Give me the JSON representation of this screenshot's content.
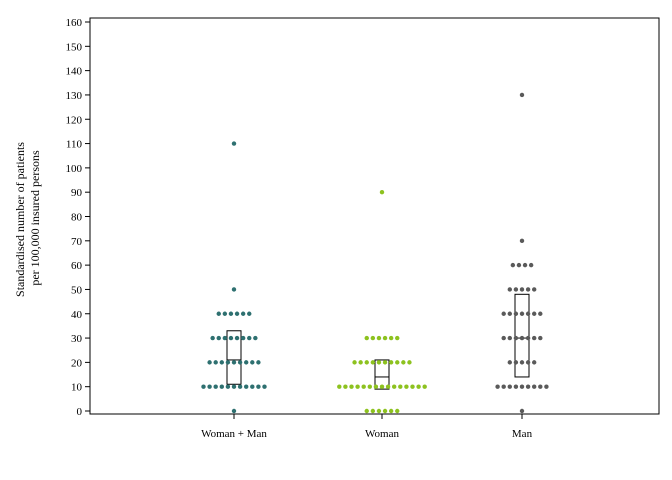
{
  "chart_data": {
    "type": "scatter",
    "subtype": "dot-strip-with-box",
    "title": "",
    "xlabel": "",
    "ylabel": "Standardised number of patients per 100,000 insured persons",
    "ylabel_lines": [
      "Standardised number of patients",
      "per 100,000 insured persons"
    ],
    "ylim": [
      0,
      160
    ],
    "yticks": [
      0,
      10,
      20,
      30,
      40,
      50,
      60,
      70,
      80,
      90,
      100,
      110,
      120,
      130,
      140,
      150,
      160
    ],
    "grid": false,
    "legend": "none",
    "categories": [
      "Woman + Man",
      "Woman",
      "Man"
    ],
    "series": [
      {
        "category": "Woman + Man",
        "color": "#2e7070",
        "points": [
          {
            "y": 0,
            "n": 1
          },
          {
            "y": 10,
            "n": 11
          },
          {
            "y": 20,
            "n": 9
          },
          {
            "y": 30,
            "n": 8
          },
          {
            "y": 40,
            "n": 6
          },
          {
            "y": 50,
            "n": 1
          },
          {
            "y": 110,
            "n": 1
          }
        ],
        "box": {
          "q1": 11,
          "median": 21,
          "q3": 33
        }
      },
      {
        "category": "Woman",
        "color": "#8dc21f",
        "points": [
          {
            "y": 0,
            "n": 6
          },
          {
            "y": 10,
            "n": 15
          },
          {
            "y": 20,
            "n": 10
          },
          {
            "y": 30,
            "n": 6
          },
          {
            "y": 90,
            "n": 1
          }
        ],
        "box": {
          "q1": 9,
          "median": 14,
          "q3": 21
        }
      },
      {
        "category": "Man",
        "color": "#5a5a5a",
        "points": [
          {
            "y": 0,
            "n": 1
          },
          {
            "y": 10,
            "n": 9
          },
          {
            "y": 20,
            "n": 5
          },
          {
            "y": 30,
            "n": 7
          },
          {
            "y": 40,
            "n": 7
          },
          {
            "y": 50,
            "n": 5
          },
          {
            "y": 60,
            "n": 4
          },
          {
            "y": 70,
            "n": 1
          },
          {
            "y": 130,
            "n": 1
          }
        ],
        "box": {
          "q1": 14,
          "median": 30,
          "q3": 48
        }
      }
    ]
  }
}
